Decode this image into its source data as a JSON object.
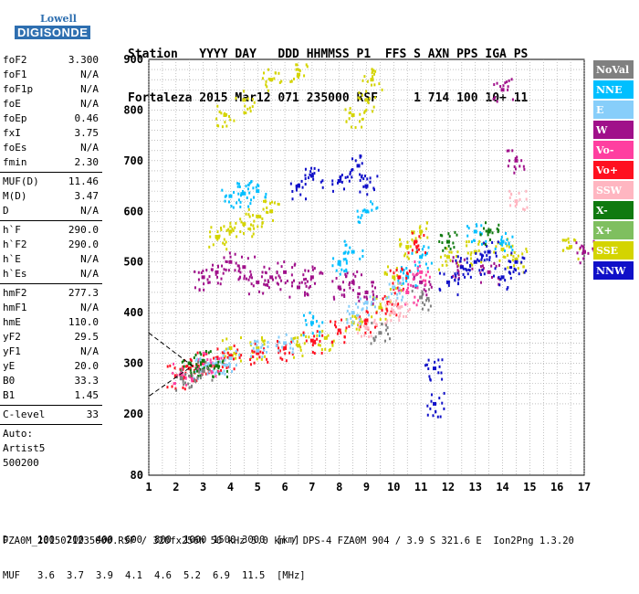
{
  "logo": {
    "line1": "Lowell",
    "line2": "DIGISONDE"
  },
  "header": {
    "line1": [
      "Station",
      "YYYY DAY",
      "DDD HHMMSS",
      "P1",
      "FFS S AXN PPS IGA PS"
    ],
    "line2": [
      "Fortaleza",
      "2015 Mar12",
      "071 235000",
      "RSF",
      "1 714 100 10+ 11"
    ]
  },
  "params": {
    "group1": [
      {
        "name": "foF2",
        "value": "3.300"
      },
      {
        "name": "foF1",
        "value": "N/A"
      },
      {
        "name": "foF1p",
        "value": "N/A"
      },
      {
        "name": "foE",
        "value": "N/A"
      },
      {
        "name": "foEp",
        "value": "0.46"
      },
      {
        "name": "fxI",
        "value": "3.75"
      },
      {
        "name": "foEs",
        "value": "N/A"
      },
      {
        "name": "fmin",
        "value": "2.30"
      }
    ],
    "group2": [
      {
        "name": "MUF(D)",
        "value": "11.46"
      },
      {
        "name": "M(D)",
        "value": "3.47"
      },
      {
        "name": "D",
        "value": "N/A"
      }
    ],
    "group3": [
      {
        "name": "h`F",
        "value": "290.0"
      },
      {
        "name": "h`F2",
        "value": "290.0"
      },
      {
        "name": "h`E",
        "value": "N/A"
      },
      {
        "name": "h`Es",
        "value": "N/A"
      }
    ],
    "group4": [
      {
        "name": "hmF2",
        "value": "277.3"
      },
      {
        "name": "hmF1",
        "value": "N/A"
      },
      {
        "name": "hmE",
        "value": "110.0"
      },
      {
        "name": "yF2",
        "value": "29.5"
      },
      {
        "name": "yF1",
        "value": "N/A"
      },
      {
        "name": "yE",
        "value": "20.0"
      },
      {
        "name": "B0",
        "value": "33.3"
      },
      {
        "name": "B1",
        "value": "1.45"
      }
    ],
    "group5": [
      {
        "name": "C-level",
        "value": "33"
      }
    ],
    "auto": [
      "Auto:",
      "Artist5",
      "500200"
    ]
  },
  "legend": [
    {
      "label": "NoVal",
      "color": "#808080"
    },
    {
      "label": "NNE",
      "color": "#00bfff"
    },
    {
      "label": "E",
      "color": "#87cefa"
    },
    {
      "label": "W",
      "color": "#a0108a"
    },
    {
      "label": "Vo-",
      "color": "#ff3fa0"
    },
    {
      "label": "Vo+",
      "color": "#ff1020"
    },
    {
      "label": "SSW",
      "color": "#ffb6c1"
    },
    {
      "label": "X-",
      "color": "#107a10"
    },
    {
      "label": "X+",
      "color": "#7fbf5f"
    },
    {
      "label": "SSE",
      "color": "#d4d400"
    },
    {
      "label": "NNW",
      "color": "#1010c8"
    }
  ],
  "chart_data": {
    "type": "scatter",
    "title": "",
    "xlabel": "",
    "ylabel": "",
    "xlim": [
      1,
      17
    ],
    "ylim": [
      80,
      900
    ],
    "xticks": [
      1,
      2,
      3,
      4,
      5,
      6,
      7,
      8,
      9,
      10,
      11,
      12,
      13,
      14,
      15,
      16,
      17
    ],
    "yticks": [
      80,
      200,
      300,
      400,
      500,
      600,
      700,
      800,
      900
    ],
    "grid": true,
    "legend_position": "right",
    "series": [
      {
        "name": "SSE",
        "color": "#d4d400",
        "points": [
          [
            3.5,
            550
          ],
          [
            4.0,
            560
          ],
          [
            4.5,
            575
          ],
          [
            5.0,
            590
          ],
          [
            5.5,
            600
          ],
          [
            3.8,
            790
          ],
          [
            4.5,
            820
          ],
          [
            5.5,
            860
          ],
          [
            6.5,
            870
          ],
          [
            8.5,
            790
          ],
          [
            9.0,
            820
          ],
          [
            9.2,
            860
          ],
          [
            10.0,
            470
          ],
          [
            10.5,
            530
          ],
          [
            11.0,
            560
          ],
          [
            12.0,
            510
          ],
          [
            13.0,
            520
          ],
          [
            14.0,
            525
          ],
          [
            14.5,
            505
          ],
          [
            16.5,
            530
          ],
          [
            4.0,
            330
          ],
          [
            5.0,
            330
          ],
          [
            6.5,
            335
          ],
          [
            7.5,
            350
          ],
          [
            8.5,
            380
          ],
          [
            9.5,
            410
          ]
        ]
      },
      {
        "name": "W",
        "color": "#a0108a",
        "points": [
          [
            3.0,
            470
          ],
          [
            3.5,
            480
          ],
          [
            4.0,
            500
          ],
          [
            4.5,
            490
          ],
          [
            5.0,
            460
          ],
          [
            5.5,
            470
          ],
          [
            6.0,
            480
          ],
          [
            6.5,
            450
          ],
          [
            7.0,
            470
          ],
          [
            8.0,
            450
          ],
          [
            8.5,
            460
          ],
          [
            9.0,
            440
          ],
          [
            11.0,
            460
          ],
          [
            12.5,
            490
          ],
          [
            13.5,
            480
          ],
          [
            14.0,
            840
          ],
          [
            14.5,
            700
          ],
          [
            17.0,
            520
          ]
        ]
      },
      {
        "name": "NNW",
        "color": "#1010c8",
        "points": [
          [
            6.5,
            650
          ],
          [
            7.0,
            670
          ],
          [
            8.0,
            660
          ],
          [
            8.7,
            690
          ],
          [
            9.0,
            650
          ],
          [
            12.0,
            460
          ],
          [
            12.5,
            490
          ],
          [
            13.0,
            500
          ],
          [
            13.5,
            520
          ],
          [
            14.0,
            470
          ],
          [
            14.5,
            500
          ],
          [
            11.5,
            220
          ],
          [
            11.5,
            290
          ]
        ]
      },
      {
        "name": "NNE",
        "color": "#00bfff",
        "points": [
          [
            4.0,
            630
          ],
          [
            4.5,
            635
          ],
          [
            5.0,
            640
          ],
          [
            8.0,
            500
          ],
          [
            8.5,
            520
          ],
          [
            9.0,
            600
          ],
          [
            10.5,
            470
          ],
          [
            11.0,
            510
          ],
          [
            13.0,
            560
          ],
          [
            14.0,
            540
          ],
          [
            7.0,
            380
          ]
        ]
      },
      {
        "name": "Vo+",
        "color": "#ff1020",
        "points": [
          [
            2.0,
            275
          ],
          [
            2.5,
            290
          ],
          [
            3.0,
            300
          ],
          [
            3.5,
            310
          ],
          [
            4.0,
            315
          ],
          [
            5.0,
            320
          ],
          [
            6.0,
            330
          ],
          [
            7.0,
            345
          ],
          [
            8.0,
            365
          ],
          [
            9.0,
            385
          ],
          [
            9.8,
            420
          ],
          [
            10.2,
            470
          ],
          [
            10.8,
            540
          ]
        ]
      },
      {
        "name": "Vo-",
        "color": "#ff3fa0",
        "points": [
          [
            2.2,
            280
          ],
          [
            2.8,
            290
          ],
          [
            3.3,
            300
          ],
          [
            10.5,
            440
          ],
          [
            11.0,
            480
          ]
        ]
      },
      {
        "name": "E",
        "color": "#87cefa",
        "points": [
          [
            3.0,
            290
          ],
          [
            3.5,
            300
          ],
          [
            4.0,
            310
          ],
          [
            5.0,
            325
          ],
          [
            6.0,
            340
          ],
          [
            8.5,
            400
          ],
          [
            9.0,
            420
          ],
          [
            10.0,
            450
          ]
        ]
      },
      {
        "name": "X-",
        "color": "#107a10",
        "points": [
          [
            2.5,
            300
          ],
          [
            3.0,
            305
          ],
          [
            3.5,
            295
          ],
          [
            12.0,
            540
          ],
          [
            13.5,
            560
          ]
        ]
      },
      {
        "name": "SSW",
        "color": "#ffb6c1",
        "points": [
          [
            10.0,
            400
          ],
          [
            10.2,
            410
          ],
          [
            14.5,
            620
          ],
          [
            9.0,
            370
          ]
        ]
      },
      {
        "name": "NoVal",
        "color": "#808080",
        "points": [
          [
            2.2,
            270
          ],
          [
            3.0,
            285
          ],
          [
            9.5,
            360
          ],
          [
            11.0,
            430
          ]
        ]
      }
    ],
    "trace_dashed": [
      [
        1,
        360
      ],
      [
        2.6,
        295
      ],
      [
        1,
        235
      ]
    ],
    "bottom_scale": {
      "D_label": "D",
      "D_values": [
        "100",
        "200",
        "400",
        "600",
        "800",
        "1000",
        "1500",
        "3000",
        "[km]"
      ],
      "MUF_label": "MUF",
      "MUF_values": [
        "3.6",
        "3.7",
        "3.9",
        "4.1",
        "4.6",
        "5.2",
        "6.9",
        "11.5",
        "[MHz]"
      ]
    },
    "footer": "FZA0M_2015071235000.RSF / 320fx256h 50 kHz 5.0 km / DPS-4 FZA0M 904 / 3.9 S 321.6 E  Ion2Png 1.3.20"
  }
}
